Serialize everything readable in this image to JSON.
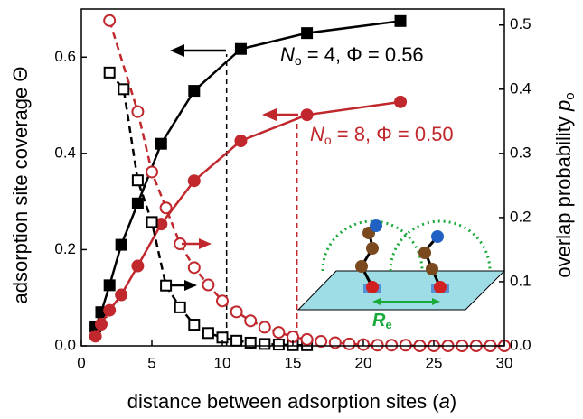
{
  "chart_data": {
    "type": "line",
    "x_label": "distance between adsorption sites (",
    "x_label_var": "a",
    "x_label_end": ")",
    "y_label": "adsorption site coverage Θ",
    "y2_label": "overlap probability ",
    "y2_label_var": "p",
    "y2_label_sub": "o",
    "xlim": [
      0,
      30
    ],
    "xticks": [
      0,
      5,
      10,
      15,
      20,
      25,
      30
    ],
    "ylim": [
      0,
      0.7
    ],
    "yticks": [
      {
        "value": 0,
        "label": "0.0"
      },
      {
        "value": 0.2,
        "label": "0.2"
      },
      {
        "value": 0.4,
        "label": "0.4"
      },
      {
        "value": 0.6,
        "label": "0.6"
      }
    ],
    "y2lim": [
      0,
      0.525
    ],
    "y2ticks": [
      {
        "value": 0,
        "label": "0.0"
      },
      {
        "value": 0.1,
        "label": "0.1"
      },
      {
        "value": 0.2,
        "label": "0.2"
      },
      {
        "value": 0.3,
        "label": "0.3"
      },
      {
        "value": 0.4,
        "label": "0.4"
      },
      {
        "value": 0.5,
        "label": "0.5"
      }
    ],
    "series": [
      {
        "color": "#000000",
        "marker": "square",
        "filled": true,
        "dashed": false,
        "x": [
          1,
          1.41,
          2,
          2.83,
          4,
          5.66,
          8,
          11.31,
          16,
          22.63
        ],
        "values": [
          0.04,
          0.07,
          0.126,
          0.21,
          0.296,
          0.42,
          0.53,
          0.617,
          0.65,
          0.675
        ]
      },
      {
        "color": "#c0282d",
        "marker": "circle",
        "filled": true,
        "dashed": false,
        "x": [
          1,
          1.41,
          2,
          2.83,
          4,
          5.66,
          8,
          11.31,
          16,
          22.63
        ],
        "values": [
          0.02,
          0.045,
          0.074,
          0.106,
          0.166,
          0.253,
          0.343,
          0.426,
          0.48,
          0.507
        ]
      },
      {
        "color": "#000000",
        "marker": "square",
        "filled": false,
        "dashed": true,
        "axis": "y2",
        "x": [
          2,
          3,
          4,
          5,
          6,
          7,
          8,
          9,
          10,
          11,
          12,
          13,
          14,
          15,
          16
        ],
        "values": [
          0.426,
          0.4,
          0.258,
          0.193,
          0.094,
          0.06,
          0.033,
          0.02,
          0.013,
          0.008,
          0.005,
          0.003,
          0.002,
          0.001,
          0.001
        ]
      },
      {
        "color": "#c0282d",
        "marker": "circle",
        "filled": false,
        "dashed": true,
        "axis": "y2",
        "x": [
          2,
          4,
          5,
          6,
          7,
          8,
          9,
          10,
          11,
          12,
          13,
          14,
          15,
          16,
          17,
          18,
          19,
          20,
          21,
          22,
          23,
          24,
          25,
          26,
          27,
          28,
          29,
          30
        ],
        "values": [
          0.507,
          0.365,
          0.271,
          0.215,
          0.159,
          0.122,
          0.095,
          0.07,
          0.053,
          0.039,
          0.029,
          0.021,
          0.014,
          0.01,
          0.007,
          0.005,
          0.003,
          0.002,
          0.001,
          0.001,
          0.001,
          0,
          0,
          0,
          0,
          0,
          0,
          0
        ]
      }
    ],
    "vlines": [
      {
        "x": 10.3,
        "color": "#000000"
      },
      {
        "x": 15.3,
        "color": "#c0282d"
      }
    ],
    "annotations": [
      {
        "n": "N",
        "sub": "o",
        "rest": " = 4, Φ = 0.56",
        "color": "#000000"
      },
      {
        "n": "N",
        "sub": "o",
        "rest": " = 8, Φ = 0.50",
        "color": "#c0282d"
      }
    ],
    "inset_label": "R",
    "inset_label_sub": "e"
  }
}
